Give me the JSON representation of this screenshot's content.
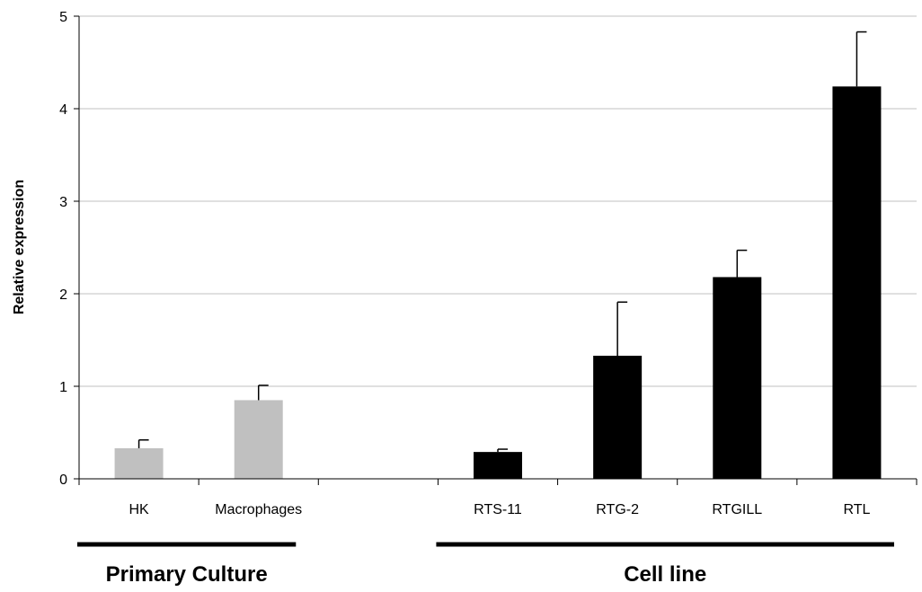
{
  "chart_data": {
    "type": "bar",
    "ylabel": "Relative expression",
    "ylim": [
      0,
      5
    ],
    "yticks": [
      0,
      1,
      2,
      3,
      4,
      5
    ],
    "grid": true,
    "categories": [
      "HK",
      "Macrophages",
      "",
      "RTS-11",
      "RTG-2",
      "RTGILL",
      "RTL"
    ],
    "values": [
      0.33,
      0.85,
      null,
      0.29,
      1.33,
      2.18,
      4.24
    ],
    "errors": [
      0.09,
      0.16,
      null,
      0.03,
      0.58,
      0.29,
      0.59
    ],
    "bar_colors": [
      "#c0c0c0",
      "#c0c0c0",
      null,
      "#000000",
      "#000000",
      "#000000",
      "#000000"
    ],
    "groups": [
      {
        "label": "Primary Culture",
        "categories": [
          "HK",
          "Macrophages"
        ]
      },
      {
        "label": "Cell line",
        "categories": [
          "RTS-11",
          "RTG-2",
          "RTGILL",
          "RTL"
        ]
      }
    ]
  },
  "colors": {
    "primary_bar": "#c0c0c0",
    "cell_line_bar": "#000000",
    "gridline": "#c0c0c0",
    "axis": "#000000"
  }
}
